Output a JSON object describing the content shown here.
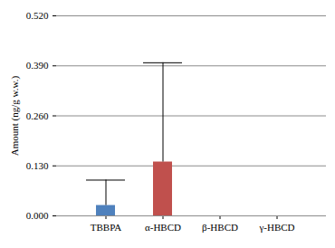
{
  "chart_data": {
    "type": "bar",
    "categories": [
      "TBBPA",
      "α-HBCD",
      "β-HBCD",
      "γ-HBCD"
    ],
    "values": [
      0.027,
      0.14,
      0,
      0
    ],
    "errors": [
      0.066,
      0.258,
      0,
      0
    ],
    "colors": [
      "#4f81bd",
      "#c0504d",
      "#9bbb59",
      "#8064a2"
    ],
    "y_label": "Amount (ng/g w.w.)",
    "ylim": [
      0,
      0.52
    ],
    "yticks": [
      {
        "value": 0,
        "label": "0.000"
      },
      {
        "value": 0.13,
        "label": "0.130"
      },
      {
        "value": 0.26,
        "label": "0.260"
      },
      {
        "value": 0.39,
        "label": "0.390"
      },
      {
        "value": 0.52,
        "label": "0.520"
      }
    ],
    "grid": true
  }
}
